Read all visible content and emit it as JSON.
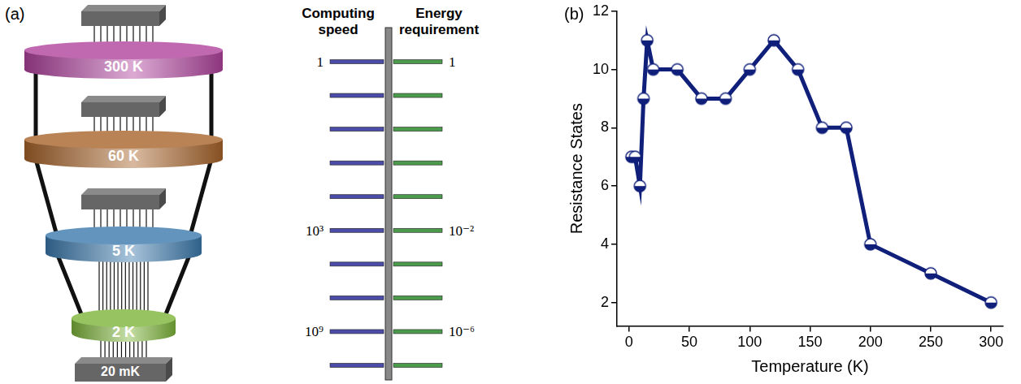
{
  "panel_a": {
    "label": "(a)",
    "stages": [
      {
        "label": "300 K",
        "color": "#b0439e"
      },
      {
        "label": "60 K",
        "color": "#a8642a"
      },
      {
        "label": "5 K",
        "color": "#3b79ad"
      },
      {
        "label": "2 K",
        "color": "#7db53a"
      }
    ],
    "base": {
      "label": "20 mK"
    },
    "scale": {
      "left_title": "Computing speed",
      "right_title": "Energy requirement",
      "left_color": "#4b4ba8",
      "right_color": "#4c9a4c",
      "left_labels": [
        "1",
        null,
        null,
        null,
        null,
        "10³",
        null,
        null,
        "10⁹",
        null
      ],
      "right_labels": [
        "1",
        null,
        null,
        null,
        null,
        "10⁻²",
        null,
        null,
        "10⁻⁶",
        null
      ]
    }
  },
  "chart_data": {
    "type": "line",
    "label": "(b)",
    "x_label": "Temperature (K)",
    "y_label": "Resistance States",
    "x": [
      2,
      5,
      9,
      12,
      15,
      20,
      40,
      60,
      80,
      100,
      120,
      140,
      160,
      180,
      200,
      250,
      300
    ],
    "values": [
      7,
      7,
      6,
      9,
      11,
      10,
      10,
      9,
      9,
      10,
      11,
      10,
      8,
      8,
      4,
      3,
      2
    ],
    "color": "#0f1f7a",
    "marker": "half_filled_circle",
    "line_style": "solid",
    "xlim": [
      -10,
      310
    ],
    "xticks": [
      0,
      50,
      100,
      150,
      200,
      250,
      300
    ],
    "ylim": [
      1.2,
      12
    ],
    "yticks": [
      2,
      4,
      6,
      8,
      10,
      12
    ],
    "grid": false
  }
}
